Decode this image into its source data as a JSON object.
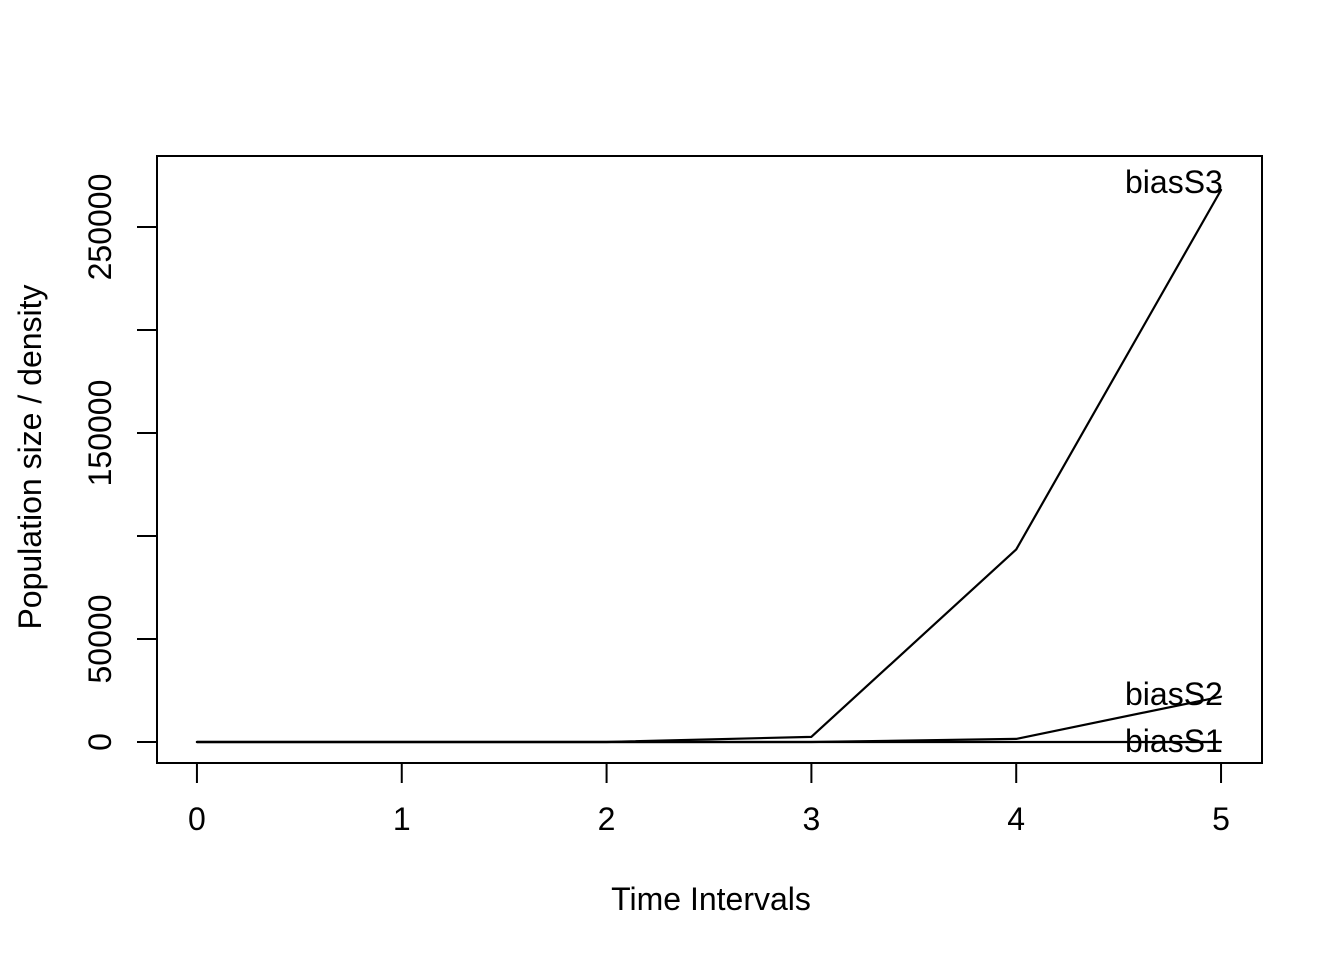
{
  "figure": {
    "background_color": "#ffffff",
    "foreground_color": "#000000"
  },
  "chart_data": {
    "type": "line",
    "title": "",
    "xlabel": "Time Intervals",
    "ylabel": "Population size / density",
    "x": [
      0,
      1,
      2,
      3,
      4,
      5
    ],
    "series": [
      {
        "name": "biasS1",
        "values": [
          0,
          0,
          0,
          0,
          0,
          0
        ]
      },
      {
        "name": "biasS2",
        "values": [
          0,
          0,
          0,
          0,
          1500,
          22000
        ]
      },
      {
        "name": "biasS3",
        "values": [
          0,
          0,
          0,
          2500,
          93500,
          268000
        ]
      }
    ],
    "x_ticks": [
      0,
      1,
      2,
      3,
      4,
      5
    ],
    "x_tick_labels": [
      "0",
      "1",
      "2",
      "3",
      "4",
      "5"
    ],
    "y_ticks": [
      0,
      50000,
      100000,
      150000,
      200000,
      250000
    ],
    "y_tick_labels": [
      "0",
      "50000",
      "",
      "150000",
      "",
      "250000"
    ],
    "x_range": [
      -0.195,
      5.2
    ],
    "y_range": [
      -10200,
      284500
    ],
    "grid": false,
    "legend_position": "inline-annotations",
    "line_color": "#000000",
    "annotations": [
      {
        "text": "biasS3",
        "x": 4.77,
        "y": 272000
      },
      {
        "text": "biasS2",
        "x": 4.77,
        "y": 23500
      },
      {
        "text": "biasS1",
        "x": 4.77,
        "y": 300
      }
    ]
  }
}
